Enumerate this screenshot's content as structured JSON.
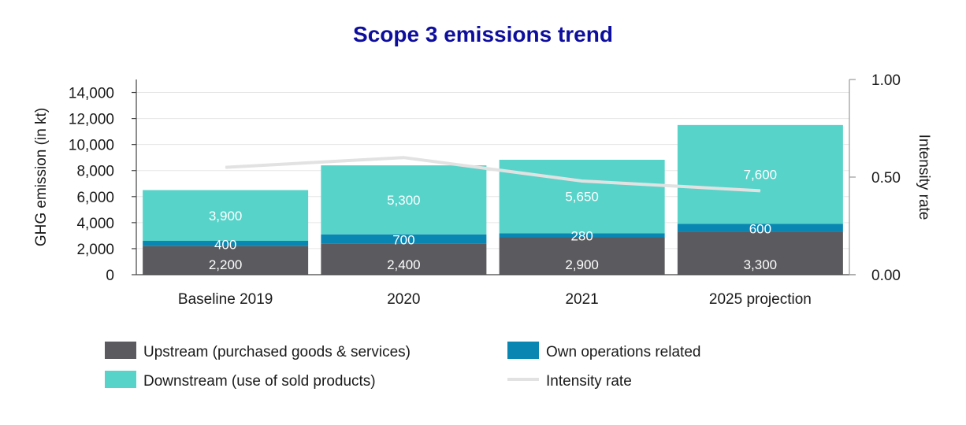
{
  "chart_data": {
    "type": "bar",
    "stacked": true,
    "title": "Scope 3 emissions trend",
    "ylabel": "GHG emission (in kt)",
    "y2label": "Intensity rate",
    "ylim": [
      0,
      15000
    ],
    "y2lim": [
      0,
      1.0
    ],
    "yticks": [
      "0",
      "2,000",
      "4,000",
      "6,000",
      "8,000",
      "10,000",
      "12,000",
      "14,000"
    ],
    "y2ticks": [
      "0.00",
      "0.50",
      "1.00"
    ],
    "categories": [
      "Baseline 2019",
      "2020",
      "2021",
      "2025 projection"
    ],
    "series": [
      {
        "name": "Upstream (purchased goods & services)",
        "color": "#5b5b5f",
        "values": [
          2200,
          2400,
          2900,
          3300
        ],
        "labels": [
          "2,200",
          "2,400",
          "2,900",
          "3,300"
        ]
      },
      {
        "name": "Own operations related",
        "color": "#0a86b3",
        "values": [
          400,
          700,
          280,
          600
        ],
        "labels": [
          "400",
          "700",
          "280",
          "600"
        ]
      },
      {
        "name": "Downstream (use of sold products)",
        "color": "#57d3c9",
        "values": [
          3900,
          5300,
          5650,
          7600
        ],
        "labels": [
          "3,900",
          "5,300",
          "5,650",
          "7,600"
        ]
      }
    ],
    "line_series": {
      "name": "Intensity rate",
      "color": "#e2e2e2",
      "axis": "right",
      "values": [
        0.55,
        0.6,
        0.48,
        0.43
      ]
    },
    "legend_position": "bottom",
    "grid": true,
    "title_color": "#0e0e9e"
  }
}
